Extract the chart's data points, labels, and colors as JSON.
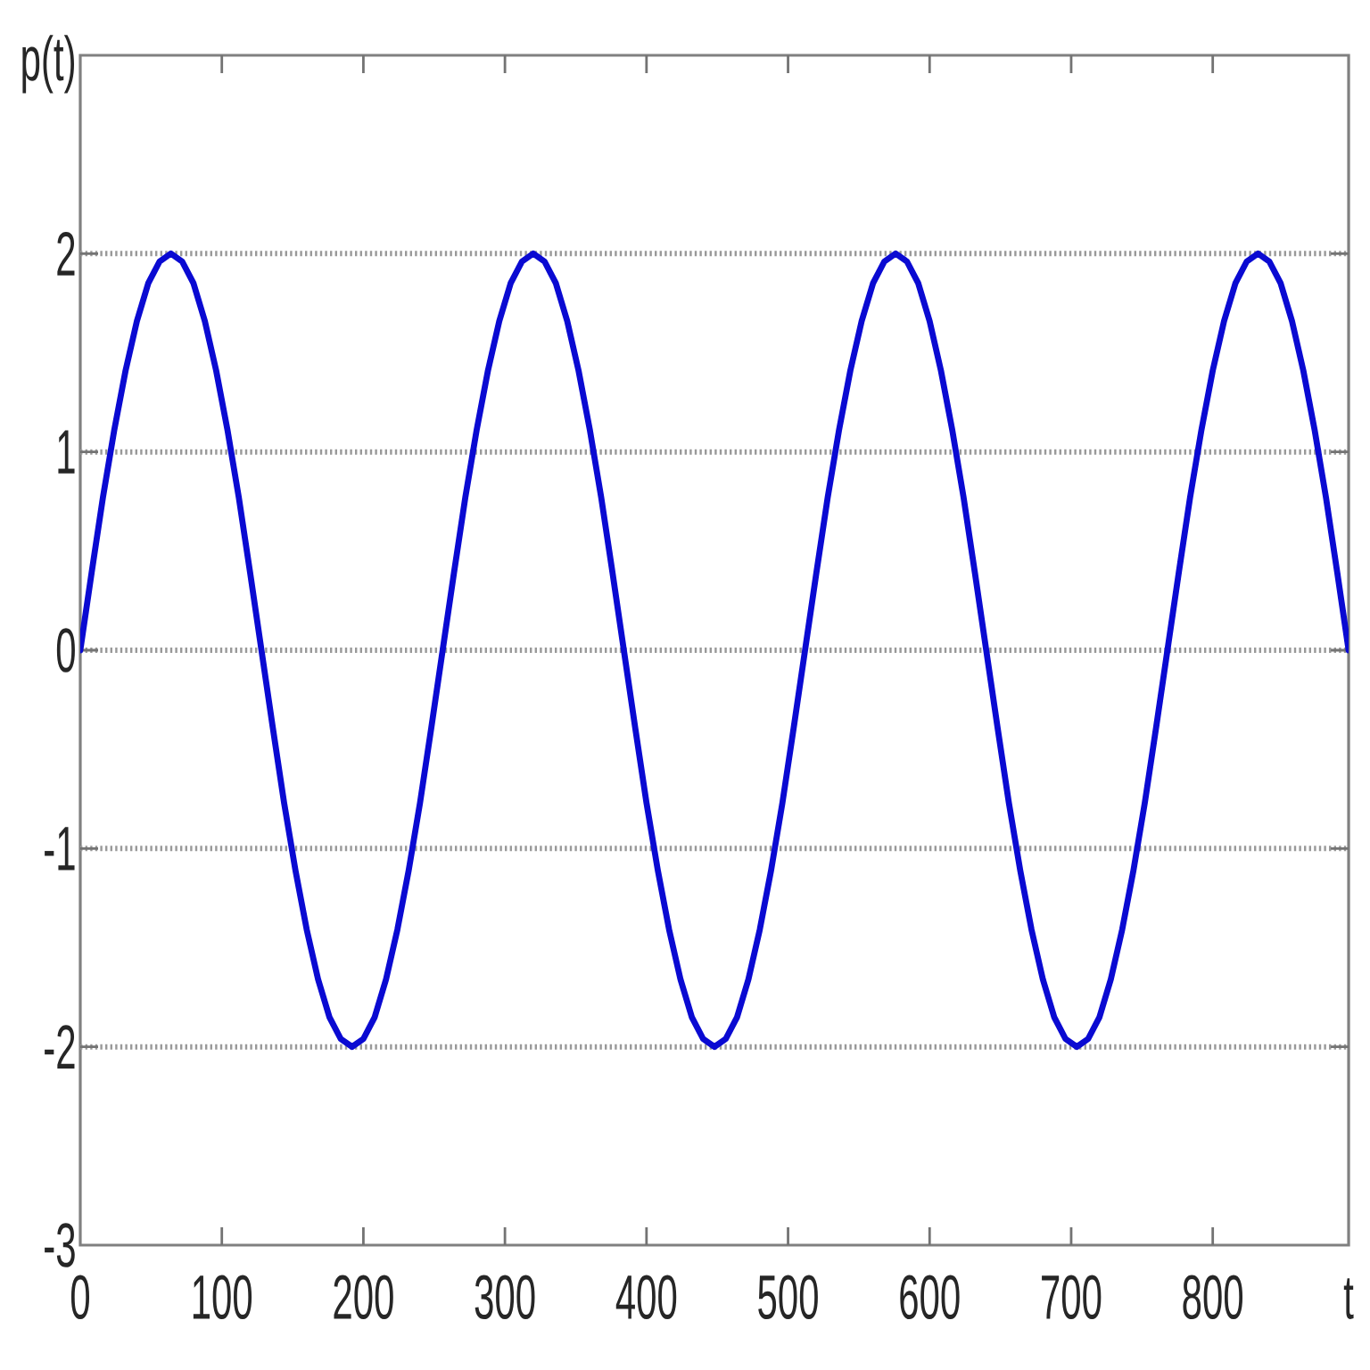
{
  "chart_data": {
    "type": "line",
    "xlabel": "t",
    "ylabel": "p(t)",
    "x": [
      0,
      8,
      16,
      24,
      32,
      40,
      48,
      56,
      64,
      72,
      80,
      88,
      96,
      104,
      112,
      120,
      128,
      136,
      144,
      152,
      160,
      168,
      176,
      184,
      192,
      200,
      208,
      216,
      224,
      232,
      240,
      248,
      256,
      264,
      272,
      280,
      288,
      296,
      304,
      312,
      320,
      328,
      336,
      344,
      352,
      360,
      368,
      376,
      384,
      392,
      400,
      408,
      416,
      424,
      432,
      440,
      448,
      456,
      464,
      472,
      480,
      488,
      496,
      504,
      512,
      520,
      528,
      536,
      544,
      552,
      560,
      568,
      576,
      584,
      592,
      600,
      608,
      616,
      624,
      632,
      640,
      648,
      656,
      664,
      672,
      680,
      688,
      696,
      704,
      712,
      720,
      728,
      736,
      744,
      752,
      760,
      768,
      776,
      784,
      792,
      800,
      808,
      816,
      824,
      832,
      840,
      848,
      856,
      864,
      872,
      880,
      888,
      896
    ],
    "series": [
      {
        "color": "#0a0ad2",
        "values": [
          0,
          0.39,
          0.77,
          1.11,
          1.41,
          1.66,
          1.85,
          1.96,
          2,
          1.96,
          1.85,
          1.66,
          1.41,
          1.11,
          0.77,
          0.39,
          0,
          -0.39,
          -0.77,
          -1.11,
          -1.41,
          -1.66,
          -1.85,
          -1.96,
          -2,
          -1.96,
          -1.85,
          -1.66,
          -1.41,
          -1.11,
          -0.77,
          -0.39,
          0,
          0.39,
          0.77,
          1.11,
          1.41,
          1.66,
          1.85,
          1.96,
          2,
          1.96,
          1.85,
          1.66,
          1.41,
          1.11,
          0.77,
          0.39,
          0,
          -0.39,
          -0.77,
          -1.11,
          -1.41,
          -1.66,
          -1.85,
          -1.96,
          -2,
          -1.96,
          -1.85,
          -1.66,
          -1.41,
          -1.11,
          -0.77,
          -0.39,
          0,
          0.39,
          0.77,
          1.11,
          1.41,
          1.66,
          1.85,
          1.96,
          2,
          1.96,
          1.85,
          1.66,
          1.41,
          1.11,
          0.77,
          0.39,
          0,
          -0.39,
          -0.77,
          -1.11,
          -1.41,
          -1.66,
          -1.85,
          -1.96,
          -2,
          -1.96,
          -1.85,
          -1.66,
          -1.41,
          -1.11,
          -0.77,
          -0.39,
          0,
          0.39,
          0.77,
          1.11,
          1.41,
          1.66,
          1.85,
          1.96,
          2,
          1.96,
          1.85,
          1.66,
          1.41,
          1.11,
          0.77,
          0.39,
          0
        ]
      }
    ],
    "xlim": [
      0,
      896
    ],
    "xticks": [
      0,
      100,
      200,
      300,
      400,
      500,
      600,
      700,
      800
    ],
    "ylim": [
      -3,
      3
    ],
    "yticks": [
      -3,
      -2,
      -1,
      0,
      1,
      2
    ],
    "grid": "y",
    "line_style": "solid"
  }
}
